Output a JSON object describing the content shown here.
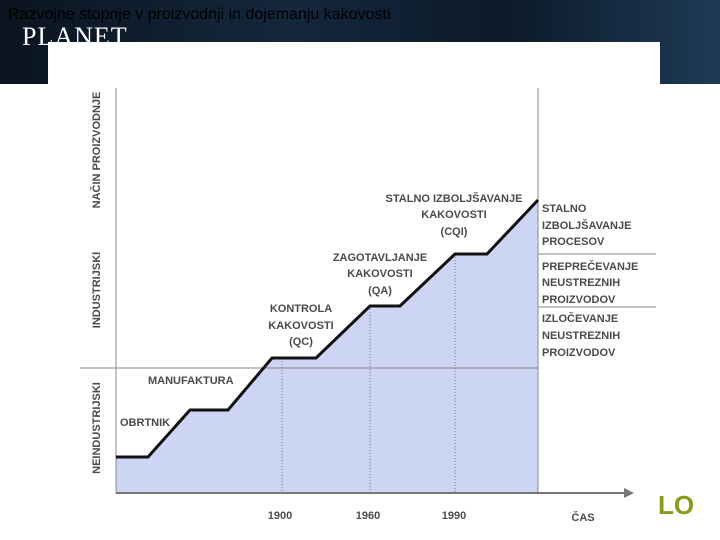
{
  "header": {
    "title": "Razvojne stopnje v proizvodnji in dojemanju kakovosti",
    "logo": "PLANET"
  },
  "diagram": {
    "y_axis_title": "NAČIN PROIZVODNJE",
    "zones": [
      "INDUSTRIJSKI",
      "NEINDUSTRIJSKI"
    ],
    "stages": [
      {
        "lines": [
          "OBRTNIK"
        ]
      },
      {
        "lines": [
          "MANUFAKTURA"
        ]
      },
      {
        "lines": [
          "KONTROLA",
          "KAKOVOSTI",
          "(QC)"
        ]
      },
      {
        "lines": [
          "ZAGOTAVLJANJE",
          "KAKOVOSTI",
          "(QA)"
        ]
      },
      {
        "lines": [
          "STALNO IZBOLJŠAVANJE",
          "KAKOVOSTI",
          "(CQI)"
        ]
      }
    ],
    "outcomes": [
      {
        "lines": [
          "STALNO",
          "IZBOLJŠAVANJE",
          "PROCESOV"
        ]
      },
      {
        "lines": [
          "PREPREČEVANJE",
          "NEUSTREZNIH",
          "PROIZVODOV"
        ]
      },
      {
        "lines": [
          "IZLOČEVANJE",
          "NEUSTREZNIH",
          "PROIZVODOV"
        ]
      }
    ],
    "x_labels": [
      "1900",
      "1960",
      "1990"
    ],
    "x_axis_title": "ČAS"
  },
  "footer_logo": "LO"
}
